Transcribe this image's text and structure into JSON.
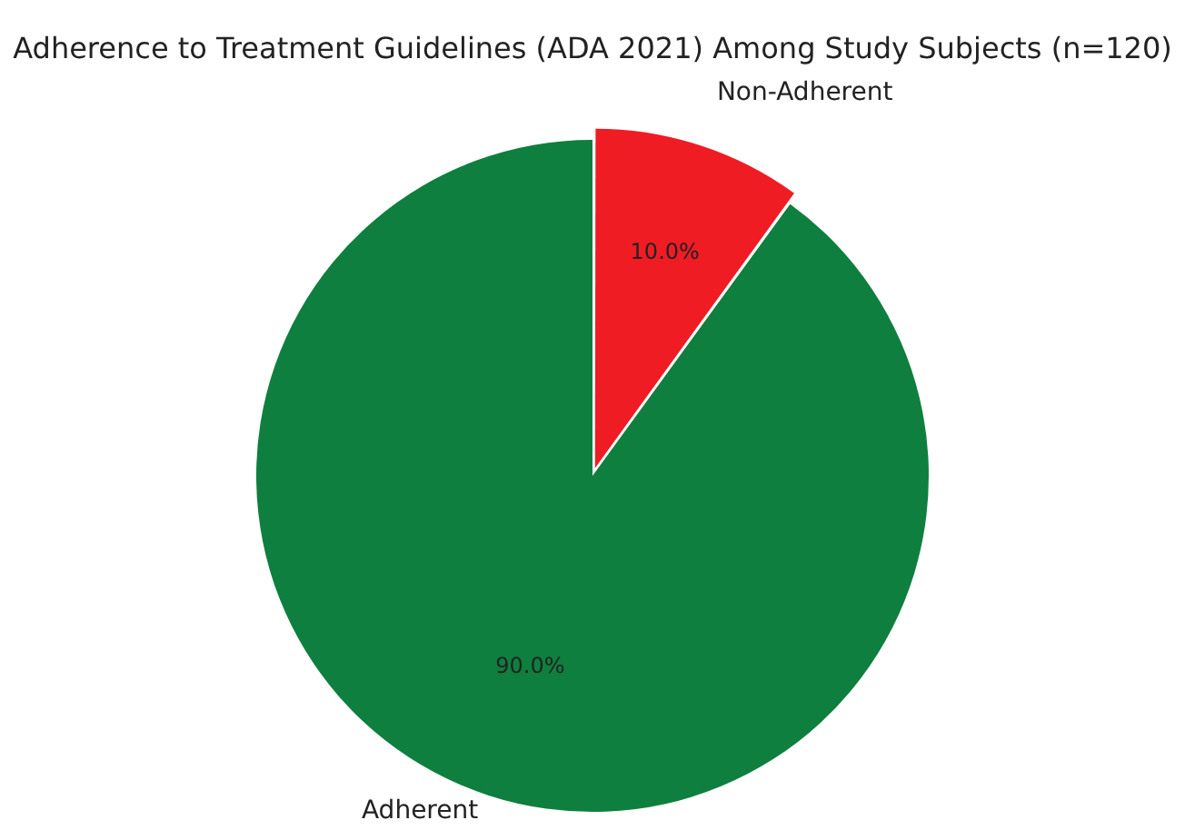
{
  "chart_data": {
    "type": "pie",
    "title": "Adherence to Treatment Guidelines (ADA 2021) Among Study Subjects (n=120)",
    "categories": [
      "Adherent",
      "Non-Adherent"
    ],
    "values": [
      90,
      10
    ],
    "colors": [
      "#0e7f3e",
      "#ef1c24"
    ],
    "value_labels": [
      "90.0%",
      "10.0%"
    ],
    "legend": false
  }
}
